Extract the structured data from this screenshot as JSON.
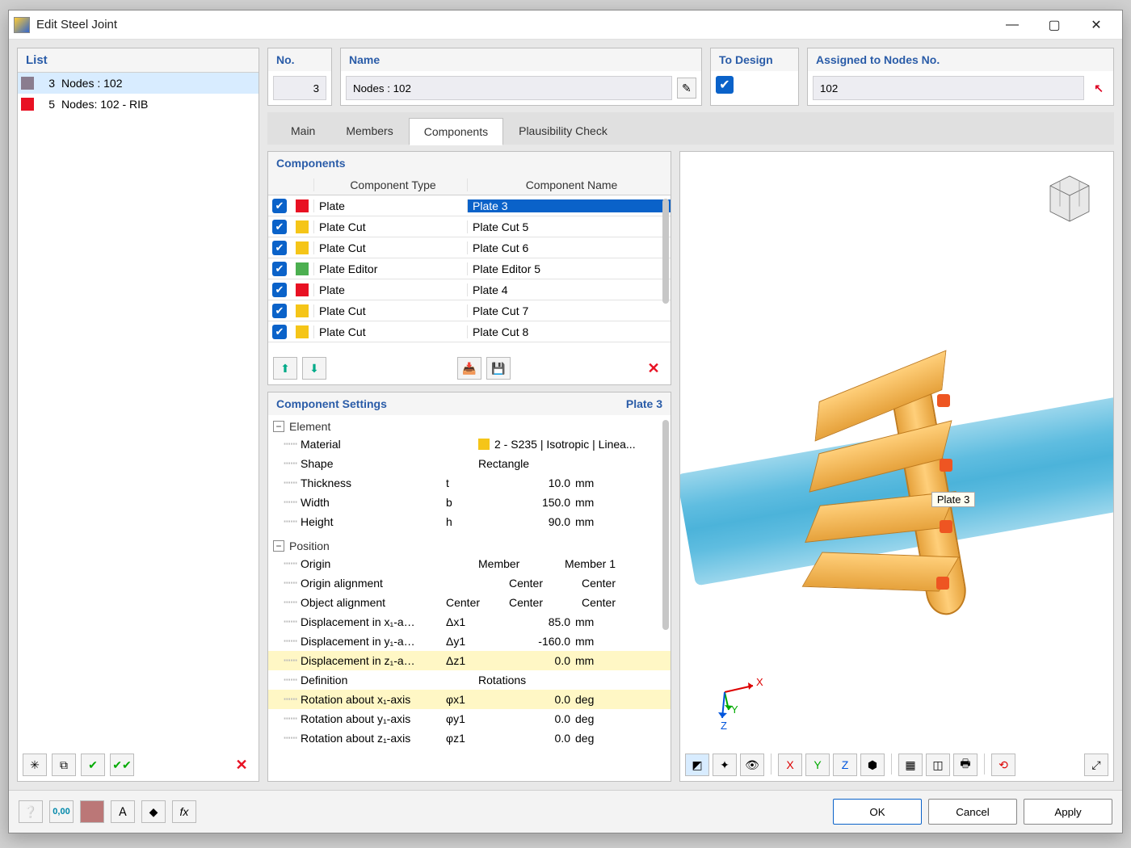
{
  "window": {
    "title": "Edit Steel Joint"
  },
  "list_panel": {
    "header": "List",
    "items": [
      {
        "num": "3",
        "label": "Nodes : 102",
        "color": "#8a7d8f",
        "selected": true
      },
      {
        "num": "5",
        "label": "Nodes: 102 - RIB",
        "color": "#e81123",
        "selected": false
      }
    ]
  },
  "top_fields": {
    "no_label": "No.",
    "no_value": "3",
    "name_label": "Name",
    "name_value": "Nodes : 102",
    "todesign_label": "To Design",
    "todesign_checked": true,
    "nodes_label": "Assigned to Nodes No.",
    "nodes_value": "102"
  },
  "tabs": {
    "items": [
      "Main",
      "Members",
      "Components",
      "Plausibility Check"
    ],
    "active_index": 2
  },
  "components_panel": {
    "header": "Components",
    "col_type": "Component Type",
    "col_name": "Component Name",
    "rows": [
      {
        "checked": true,
        "color": "#e81123",
        "type": "Plate",
        "name": "Plate 3",
        "selected": true
      },
      {
        "checked": true,
        "color": "#f5c518",
        "type": "Plate Cut",
        "name": "Plate Cut 5"
      },
      {
        "checked": true,
        "color": "#f5c518",
        "type": "Plate Cut",
        "name": "Plate Cut 6"
      },
      {
        "checked": true,
        "color": "#4caf50",
        "type": "Plate Editor",
        "name": "Plate Editor 5"
      },
      {
        "checked": true,
        "color": "#e81123",
        "type": "Plate",
        "name": "Plate 4"
      },
      {
        "checked": true,
        "color": "#f5c518",
        "type": "Plate Cut",
        "name": "Plate Cut 7"
      },
      {
        "checked": true,
        "color": "#f5c518",
        "type": "Plate Cut",
        "name": "Plate Cut 8"
      }
    ]
  },
  "settings_panel": {
    "header": "Component Settings",
    "subheader": "Plate 3",
    "groups": {
      "element": {
        "title": "Element",
        "material_label": "Material",
        "material_color": "#f5c518",
        "material_value": "2 - S235 | Isotropic | Linea...",
        "shape_label": "Shape",
        "shape_value": "Rectangle",
        "thickness_label": "Thickness",
        "thickness_sym": "t",
        "thickness_val": "10.0",
        "thickness_unit": "mm",
        "width_label": "Width",
        "width_sym": "b",
        "width_val": "150.0",
        "width_unit": "mm",
        "height_label": "Height",
        "height_sym": "h",
        "height_val": "90.0",
        "height_unit": "mm"
      },
      "position": {
        "title": "Position",
        "origin_label": "Origin",
        "col_member": "Member",
        "col_member1": "Member 1",
        "origin_align_label": "Origin alignment",
        "origin_align_c1": "",
        "origin_align_c2": "Center",
        "origin_align_c3": "Center",
        "object_align_label": "Object alignment",
        "object_align_c1": "Center",
        "object_align_c2": "Center",
        "object_align_c3": "Center",
        "dx1_label": "Displacement in x₁-a…",
        "dx1_sym": "Δx1",
        "dx1_val": "85.0",
        "dx1_unit": "mm",
        "dy1_label": "Displacement in y₁-a…",
        "dy1_sym": "Δy1",
        "dy1_val": "-160.0",
        "dy1_unit": "mm",
        "dz1_label": "Displacement in z₁-a…",
        "dz1_sym": "Δz1",
        "dz1_val": "0.0",
        "dz1_unit": "mm",
        "def_label": "Definition",
        "def_val": "Rotations",
        "rx1_label": "Rotation about x₁-axis",
        "rx1_sym": "φx1",
        "rx1_val": "0.0",
        "rx1_unit": "deg",
        "ry1_label": "Rotation about y₁-axis",
        "ry1_sym": "φy1",
        "ry1_val": "0.0",
        "ry1_unit": "deg",
        "rz1_label": "Rotation about z₁-axis",
        "rz1_sym": "φz1",
        "rz1_val": "0.0",
        "rz1_unit": "deg"
      }
    }
  },
  "viewport": {
    "label_3d": "Plate 3",
    "axes": {
      "x": "X",
      "y": "Y",
      "z": "Z"
    },
    "colors": {
      "pipe": "#5fbde0",
      "flange": "#e6a23c",
      "bolt": "#ee4422"
    }
  },
  "dialog_buttons": {
    "ok": "OK",
    "cancel": "Cancel",
    "apply": "Apply"
  }
}
